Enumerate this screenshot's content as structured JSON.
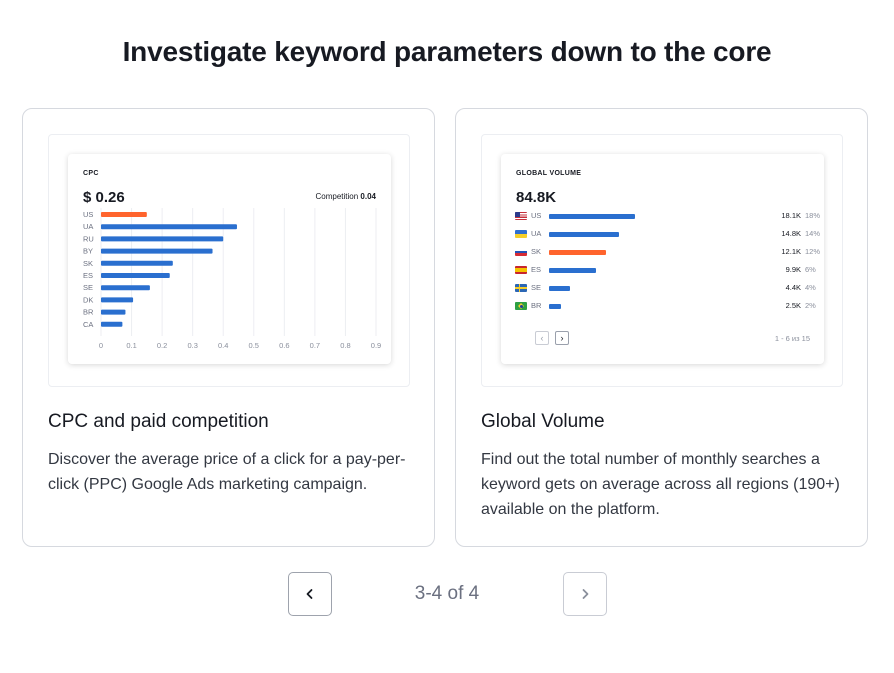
{
  "header": {
    "title": "Investigate keyword parameters down to the core"
  },
  "cards": [
    {
      "title": "CPC and paid competition",
      "description": "Discover the average price of a click for a pay-per-click (PPC) Google Ads marketing campaign.",
      "widget": {
        "label": "CPC",
        "value": "$ 0.26",
        "competition_label": "Competition",
        "competition_value": "0.04",
        "chart_data": {
          "type": "bar",
          "orientation": "horizontal",
          "categories": [
            "US",
            "UA",
            "RU",
            "BY",
            "SK",
            "ES",
            "SE",
            "DK",
            "BR",
            "CA"
          ],
          "values": [
            0.15,
            0.445,
            0.4,
            0.365,
            0.235,
            0.225,
            0.16,
            0.105,
            0.08,
            0.07
          ],
          "highlight_index": 0,
          "xlim": [
            0,
            0.9
          ],
          "xticks": [
            "0",
            "0.1",
            "0.2",
            "0.3",
            "0.4",
            "0.5",
            "0.6",
            "0.7",
            "0.8",
            "0.9"
          ],
          "grid": true,
          "colors": {
            "bar": "#2a6fcf",
            "highlight": "#ff642d"
          }
        }
      }
    },
    {
      "title": "Global Volume",
      "description": "Find out the total number of monthly searches a keyword gets on average across all regions (190+) available on the platform.",
      "widget": {
        "label": "GLOBAL VOLUME",
        "value": "84.8K",
        "rows": [
          {
            "code": "US",
            "flag": "us-flag",
            "volume": "18.1K",
            "percent": "18%",
            "share": 0.18,
            "highlight": false
          },
          {
            "code": "UA",
            "flag": "ua-flag",
            "volume": "14.8K",
            "percent": "14%",
            "share": 0.14,
            "highlight": false
          },
          {
            "code": "SK",
            "flag": "sk-flag",
            "volume": "12.1K",
            "percent": "12%",
            "share": 0.12,
            "highlight": true
          },
          {
            "code": "ES",
            "flag": "es-flag",
            "volume": "9.9K",
            "percent": "6%",
            "share": 0.06,
            "highlight": false
          },
          {
            "code": "SE",
            "flag": "se-flag",
            "volume": "4.4K",
            "percent": "4%",
            "share": 0.04,
            "highlight": false
          },
          {
            "code": "BR",
            "flag": "br-flag",
            "volume": "2.5K",
            "percent": "2%",
            "share": 0.02,
            "highlight": false
          }
        ],
        "prev_label": "‹",
        "next_label": "›",
        "page_info": "1 - 6 из 15",
        "colors": {
          "bar": "#2a6fcf",
          "highlight": "#ff642d"
        }
      }
    }
  ],
  "pagination": {
    "prev": "‹",
    "next": "›",
    "status": "3-4 of 4"
  }
}
